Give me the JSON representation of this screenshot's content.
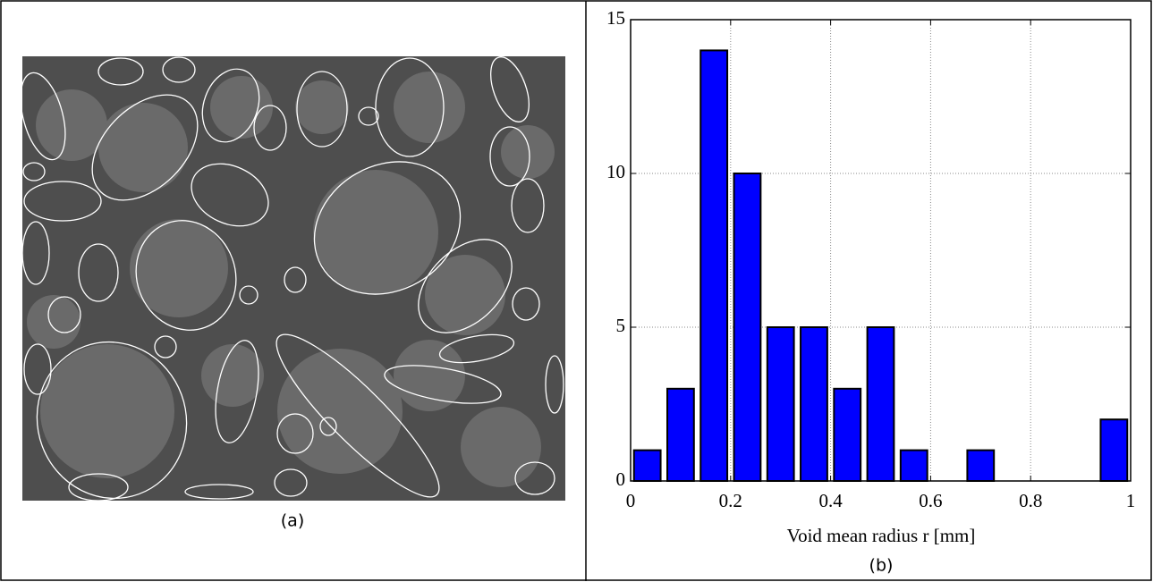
{
  "panel_a": {
    "caption": "(a)"
  },
  "chart_data": {
    "type": "histogram",
    "bins": [
      0,
      0.0667,
      0.1333,
      0.2,
      0.2667,
      0.3333,
      0.4,
      0.4667,
      0.5333,
      0.6,
      0.6667,
      0.7333,
      0.8,
      0.8667,
      0.9333,
      1
    ],
    "values": [
      1,
      3,
      14,
      10,
      5,
      5,
      3,
      5,
      1,
      0,
      1,
      0,
      0,
      0,
      2
    ],
    "color": "#0000ff",
    "xlim": [
      0,
      1
    ],
    "xticks": [
      0,
      0.2,
      0.4,
      0.6,
      0.8,
      1
    ],
    "ylim": [
      0,
      15
    ],
    "yticks": [
      0,
      5,
      10,
      15
    ],
    "grid": true,
    "xlabel": "Void mean radius r [mm]",
    "caption": "(b)"
  }
}
